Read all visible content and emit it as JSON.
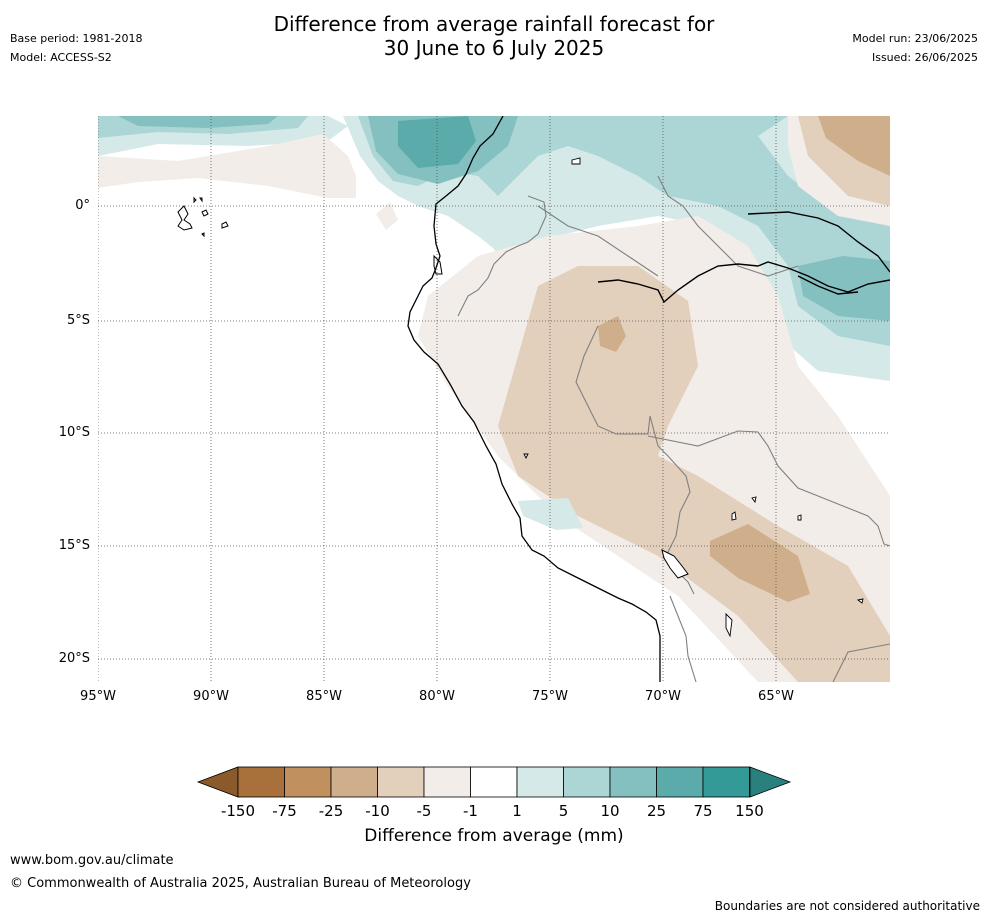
{
  "title_line1": "Difference from average rainfall forecast for",
  "title_line2": "30 June to 6 July 2025",
  "meta_left": {
    "base_period": "Base period: 1981-2018",
    "model": "Model: ACCESS-S2"
  },
  "meta_right": {
    "model_run": "Model run: 23/06/2025",
    "issued": "Issued: 26/06/2025"
  },
  "lat_labels": [
    "0°",
    "5°S",
    "10°S",
    "15°S",
    "20°S"
  ],
  "lon_labels": [
    "95°W",
    "90°W",
    "85°W",
    "80°W",
    "75°W",
    "70°W",
    "65°W"
  ],
  "colorbar": {
    "ticks": [
      "-150",
      "-75",
      "-25",
      "-10",
      "-5",
      "-1",
      "1",
      "5",
      "10",
      "25",
      "75",
      "150"
    ],
    "colors": [
      "#a8703a",
      "#c0905f",
      "#cfae8b",
      "#e2cfbc",
      "#f2ede8",
      "#ffffff",
      "#d5e9e8",
      "#acd5d5",
      "#83c0bf",
      "#5aaba9",
      "#339a97"
    ],
    "low_extend_color": "#8a5a2b",
    "high_extend_color": "#2a807d",
    "label": "Difference from average (mm)"
  },
  "footer": {
    "url": "www.bom.gov.au/climate",
    "copyright": "© Commonwealth of Australia 2025, Australian Bureau of Meteorology",
    "note": "Boundaries are not considered authoritative"
  }
}
